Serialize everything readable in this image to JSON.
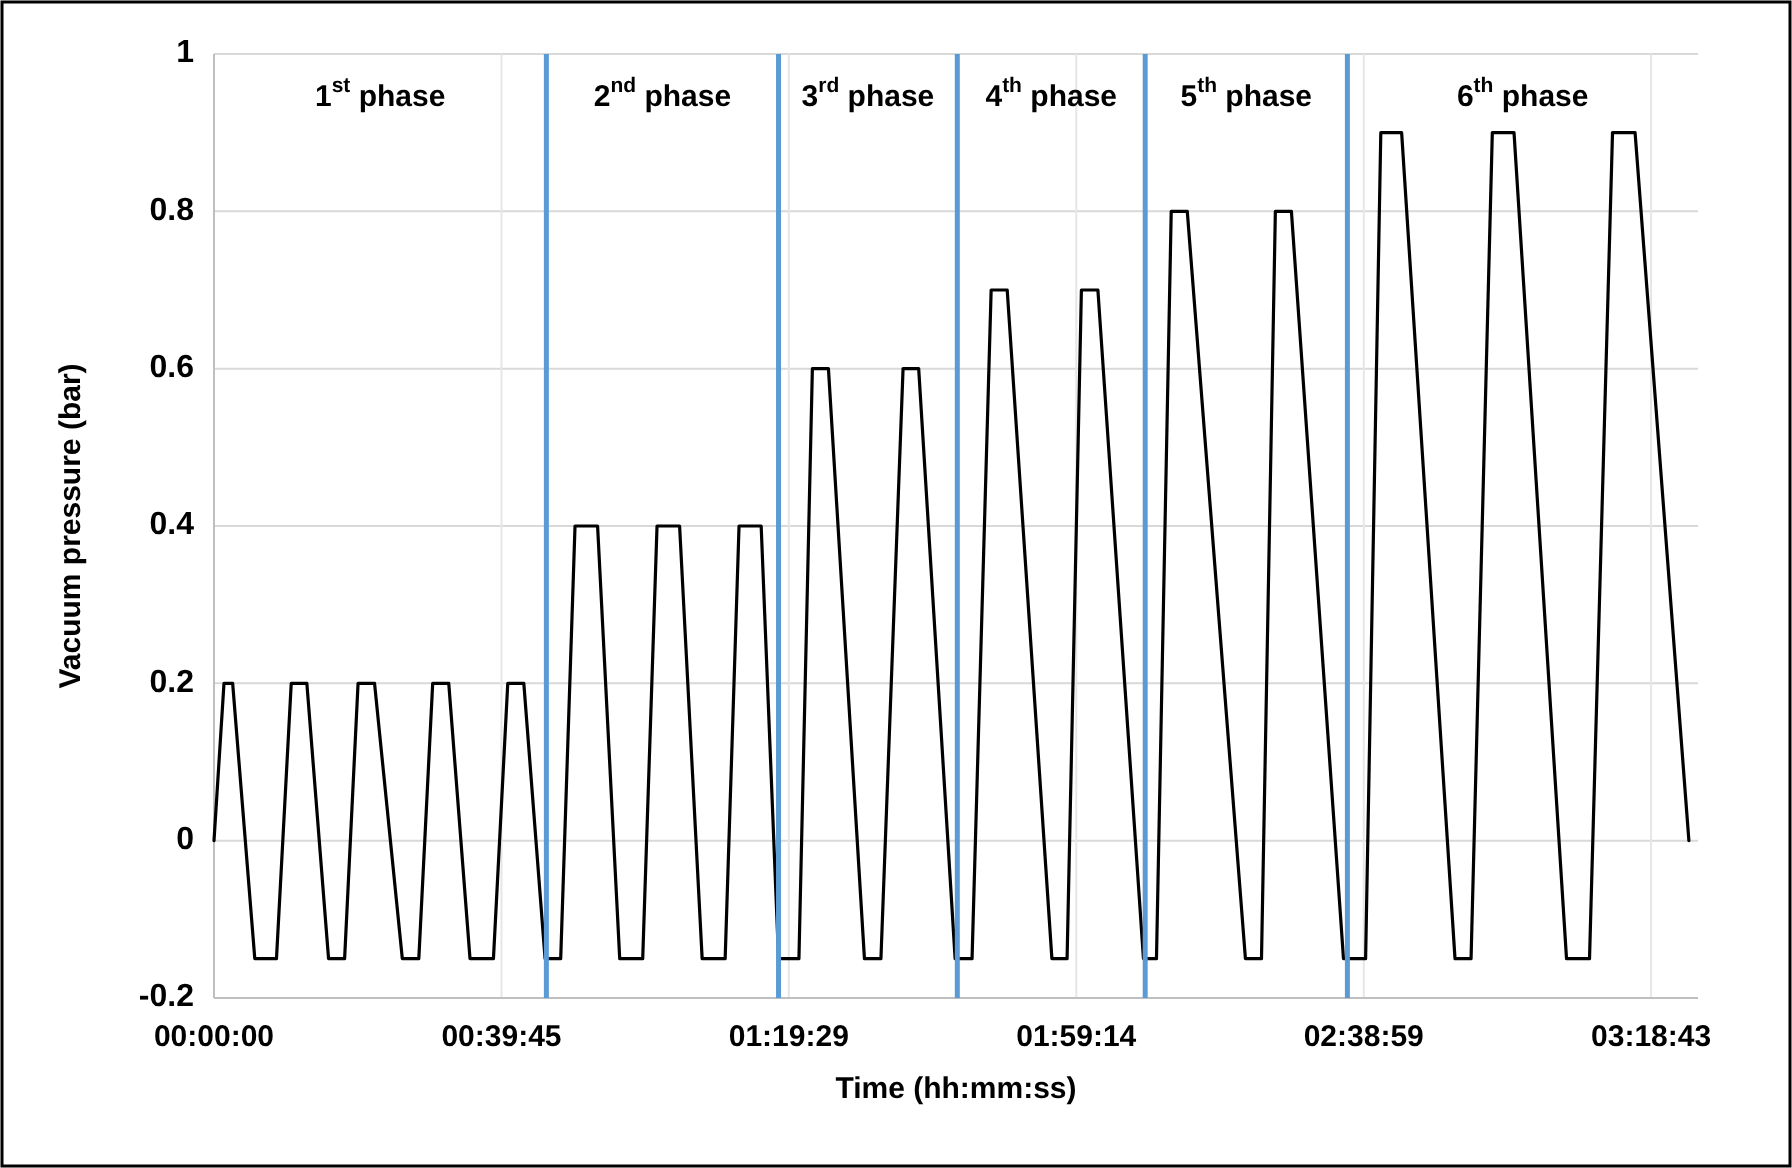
{
  "chart_data": {
    "type": "line",
    "xlabel": "Time (hh:mm:ss)",
    "ylabel": "Vacuum pressure (bar)",
    "xlim": [
      0,
      3.42
    ],
    "ylim": [
      -0.2,
      1
    ],
    "xticks": [
      {
        "value": 0,
        "label": "00:00:00"
      },
      {
        "value": 0.6625,
        "label": "00:39:45"
      },
      {
        "value": 1.3247,
        "label": "01:19:29"
      },
      {
        "value": 1.9872,
        "label": "01:59:14"
      },
      {
        "value": 2.6497,
        "label": "02:38:59"
      },
      {
        "value": 3.3119,
        "label": "03:18:43"
      }
    ],
    "yticks": [
      -0.2,
      0,
      0.2,
      0.4,
      0.6,
      0.8,
      1
    ],
    "grid": true,
    "marker": "none",
    "line_style": "solid",
    "series": [
      {
        "color": "#000000",
        "x": [
          0,
          0.023,
          0.043,
          0.094,
          0.144,
          0.178,
          0.214,
          0.264,
          0.301,
          0.332,
          0.37,
          0.434,
          0.472,
          0.504,
          0.541,
          0.59,
          0.644,
          0.677,
          0.714,
          0.763,
          0.799,
          0.832,
          0.884,
          0.935,
          0.988,
          1.021,
          1.073,
          1.125,
          1.178,
          1.21,
          1.261,
          1.301,
          1.348,
          1.379,
          1.416,
          1.499,
          1.537,
          1.588,
          1.624,
          1.708,
          1.747,
          1.791,
          1.828,
          1.931,
          1.966,
          1.999,
          2.037,
          2.142,
          2.172,
          2.206,
          2.243,
          2.377,
          2.414,
          2.446,
          2.483,
          2.603,
          2.654,
          2.689,
          2.737,
          2.86,
          2.897,
          2.946,
          2.996,
          3.117,
          3.17,
          3.223,
          3.275,
          3.399
        ],
        "values": [
          0,
          0.2,
          0.2,
          -0.15,
          -0.15,
          0.2,
          0.2,
          -0.15,
          -0.15,
          0.2,
          0.2,
          -0.15,
          -0.15,
          0.2,
          0.2,
          -0.15,
          -0.15,
          0.2,
          0.2,
          -0.15,
          -0.15,
          0.4,
          0.4,
          -0.15,
          -0.15,
          0.4,
          0.4,
          -0.15,
          -0.15,
          0.4,
          0.4,
          -0.15,
          -0.15,
          0.6,
          0.6,
          -0.15,
          -0.15,
          0.6,
          0.6,
          -0.15,
          -0.15,
          0.7,
          0.7,
          -0.15,
          -0.15,
          0.7,
          0.7,
          -0.15,
          -0.15,
          0.8,
          0.8,
          -0.15,
          -0.15,
          0.8,
          0.8,
          -0.15,
          -0.15,
          0.9,
          0.9,
          -0.15,
          -0.15,
          0.9,
          0.9,
          -0.15,
          -0.15,
          0.9,
          0.9,
          0
        ]
      }
    ],
    "ref_lines": [
      {
        "axis": "x",
        "value": 0.766,
        "color": "#5b9bd5"
      },
      {
        "axis": "x",
        "value": 1.301,
        "color": "#5b9bd5"
      },
      {
        "axis": "x",
        "value": 1.713,
        "color": "#5b9bd5"
      },
      {
        "axis": "x",
        "value": 2.146,
        "color": "#5b9bd5"
      },
      {
        "axis": "x",
        "value": 2.612,
        "color": "#5b9bd5"
      }
    ],
    "annotations": [
      "1$^{st}$ phase",
      "2$^{nd}$ phase",
      "3$^{rd}$ phase",
      "4$^{th}$ phase",
      "5$^{th}$ phase",
      "6$^{th}$ phase"
    ]
  }
}
